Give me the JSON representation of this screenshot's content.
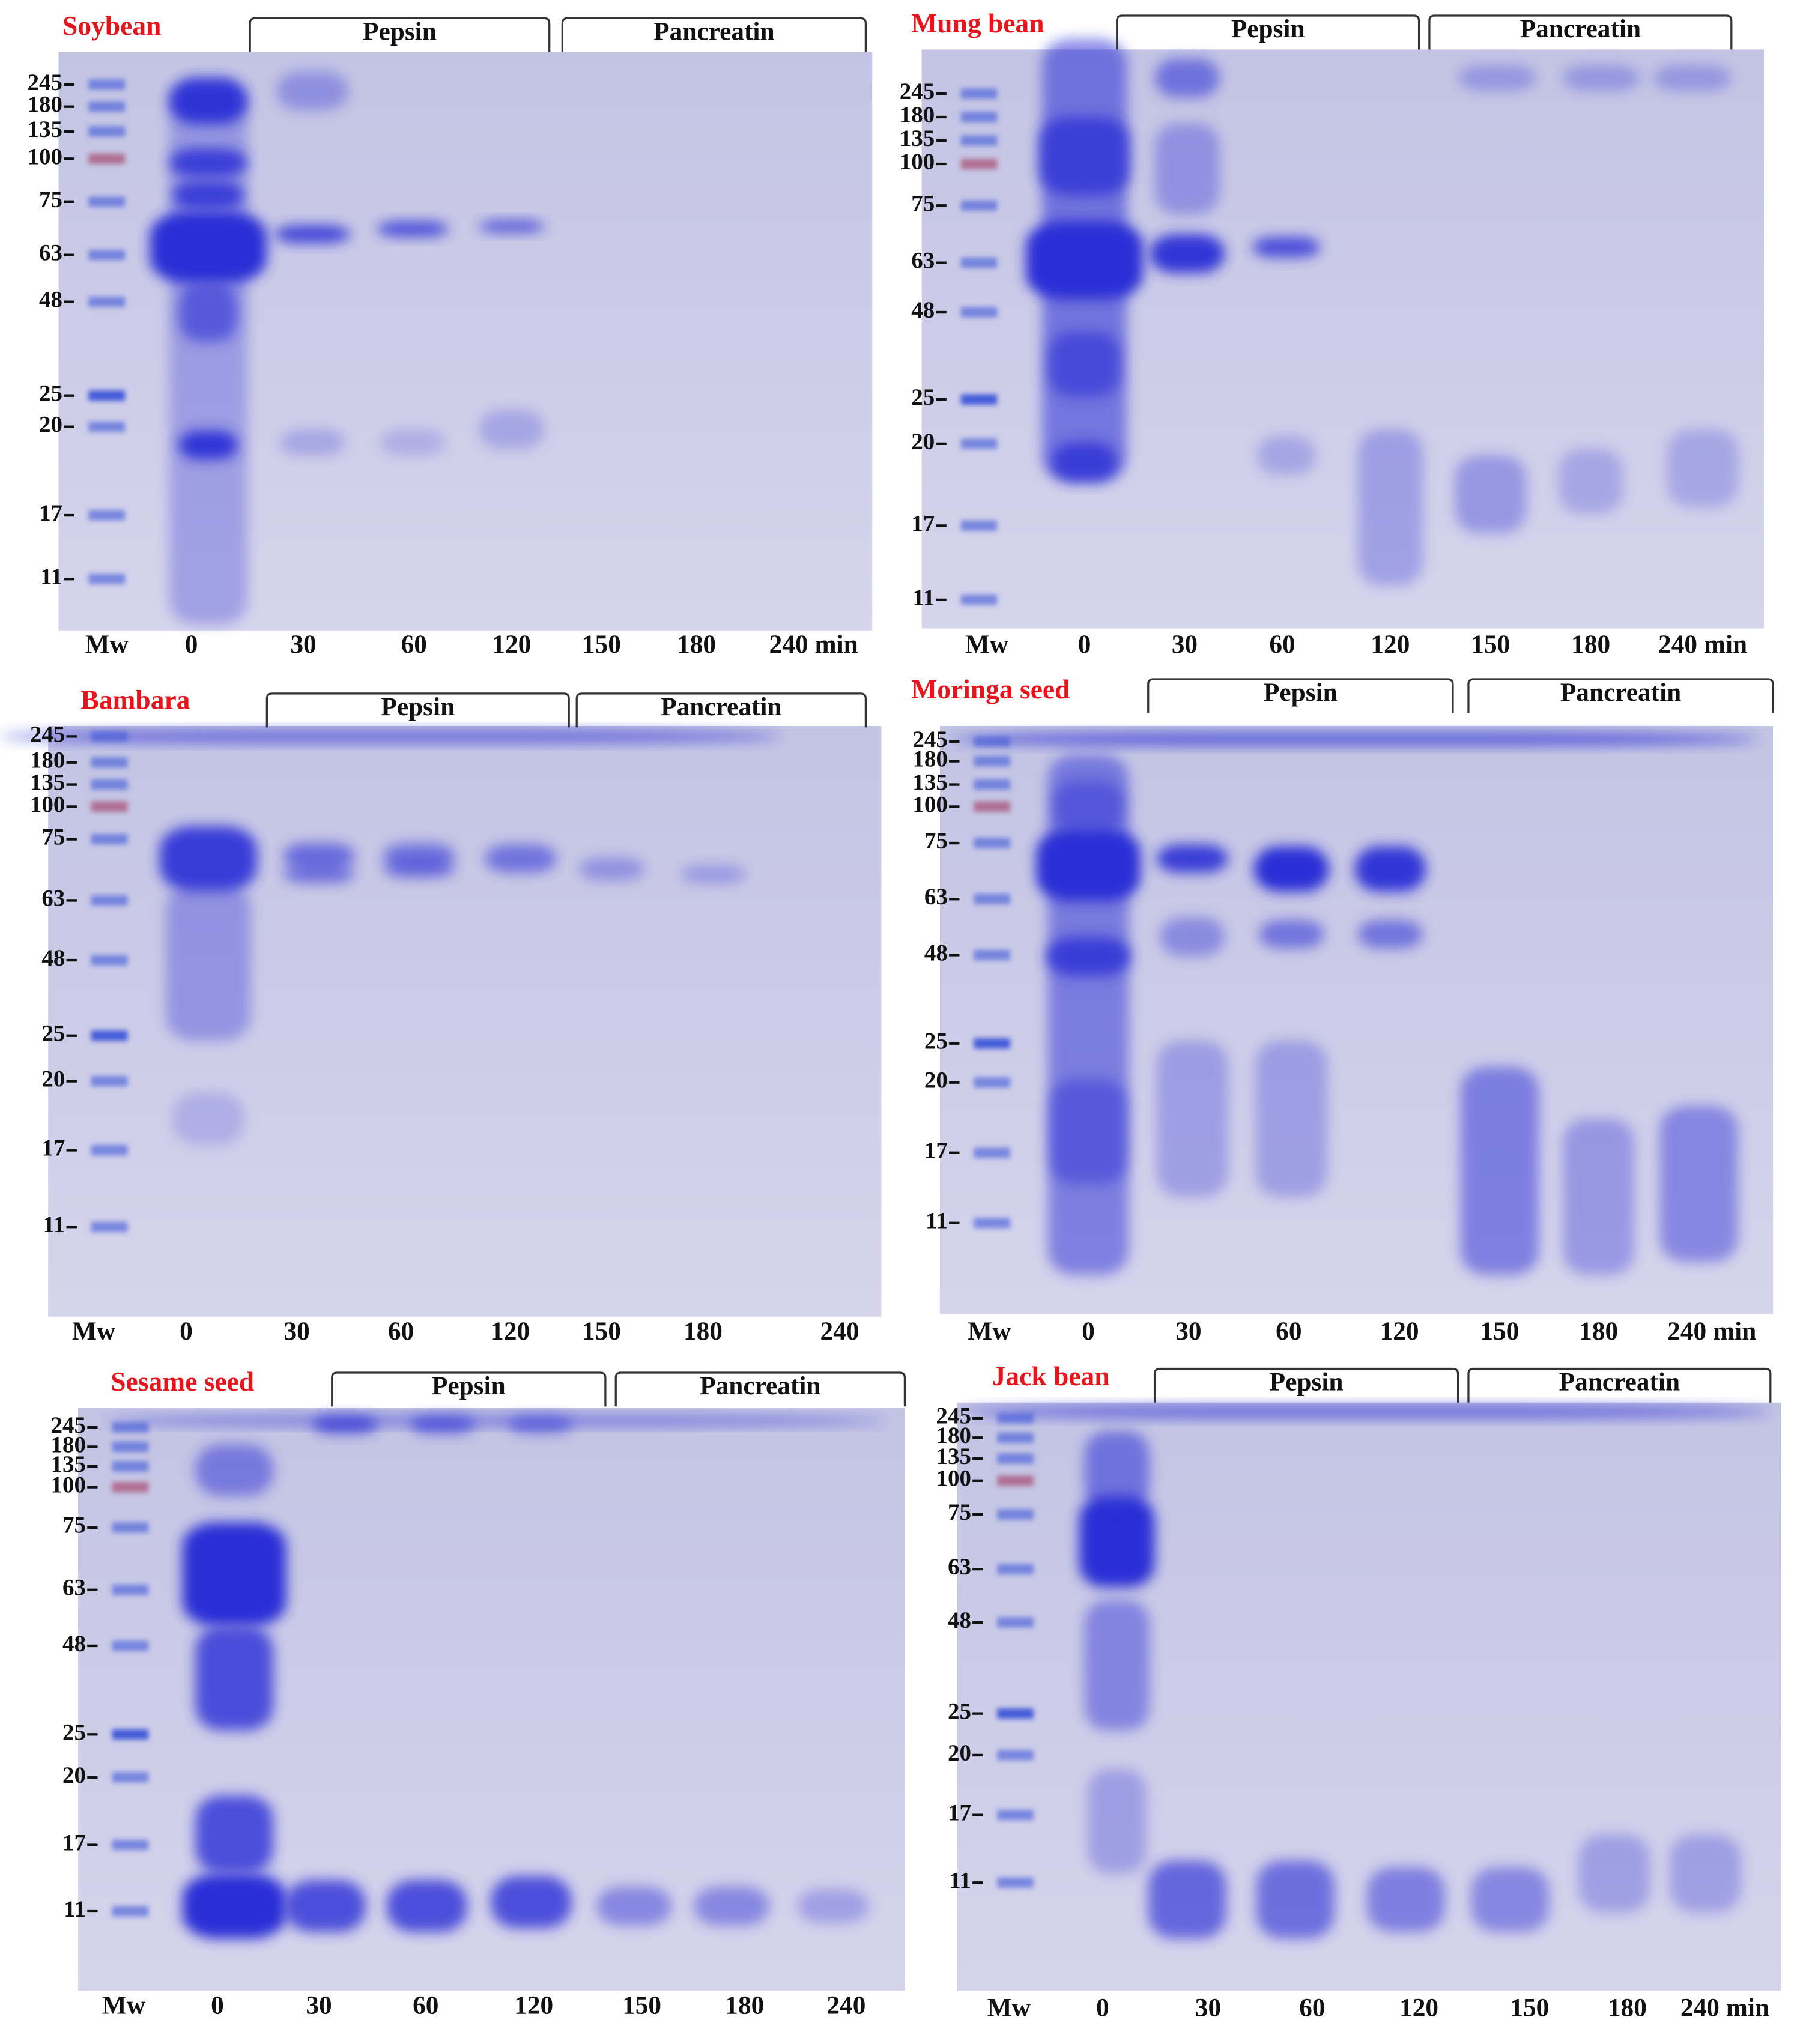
{
  "panels": [
    {
      "title": "Soybean",
      "enzymes": [
        "Pepsin",
        "Pancreatin"
      ],
      "mw": [
        "245",
        "180",
        "135",
        "100",
        "75",
        "63",
        "48",
        "25",
        "20",
        "17",
        "11"
      ],
      "lanes": [
        "Mw",
        "0",
        "30",
        "60",
        "120",
        "150",
        "180",
        "240 min"
      ]
    },
    {
      "title": "Mung bean",
      "enzymes": [
        "Pepsin",
        "Pancreatin"
      ],
      "mw": [
        "245",
        "180",
        "135",
        "100",
        "75",
        "63",
        "48",
        "25",
        "20",
        "17",
        "11"
      ],
      "lanes": [
        "Mw",
        "0",
        "30",
        "60",
        "120",
        "150",
        "180",
        "240 min"
      ]
    },
    {
      "title": "Bambara",
      "enzymes": [
        "Pepsin",
        "Pancreatin"
      ],
      "mw": [
        "245",
        "180",
        "135",
        "100",
        "75",
        "63",
        "48",
        "25",
        "20",
        "17",
        "11"
      ],
      "lanes": [
        "Mw",
        "0",
        "30",
        "60",
        "120",
        "150",
        "180",
        "240"
      ]
    },
    {
      "title": "Moringa seed",
      "enzymes": [
        "Pepsin",
        "Pancreatin"
      ],
      "mw": [
        "245",
        "180",
        "135",
        "100",
        "75",
        "63",
        "48",
        "25",
        "20",
        "17",
        "11"
      ],
      "lanes": [
        "Mw",
        "0",
        "30",
        "60",
        "120",
        "150",
        "180",
        "240 min"
      ]
    },
    {
      "title": "Sesame seed",
      "enzymes": [
        "Pepsin",
        "Pancreatin"
      ],
      "mw": [
        "245",
        "180",
        "135",
        "100",
        "75",
        "63",
        "48",
        "25",
        "20",
        "17",
        "11"
      ],
      "lanes": [
        "Mw",
        "0",
        "30",
        "60",
        "120",
        "150",
        "180",
        "240"
      ]
    },
    {
      "title": "Jack bean",
      "enzymes": [
        "Pepsin",
        "Pancreatin"
      ],
      "mw": [
        "245",
        "180",
        "135",
        "100",
        "75",
        "63",
        "48",
        "25",
        "20",
        "17",
        "11"
      ],
      "lanes": [
        "Mw",
        "0",
        "30",
        "60",
        "120",
        "150",
        "180",
        "240 min"
      ]
    }
  ]
}
